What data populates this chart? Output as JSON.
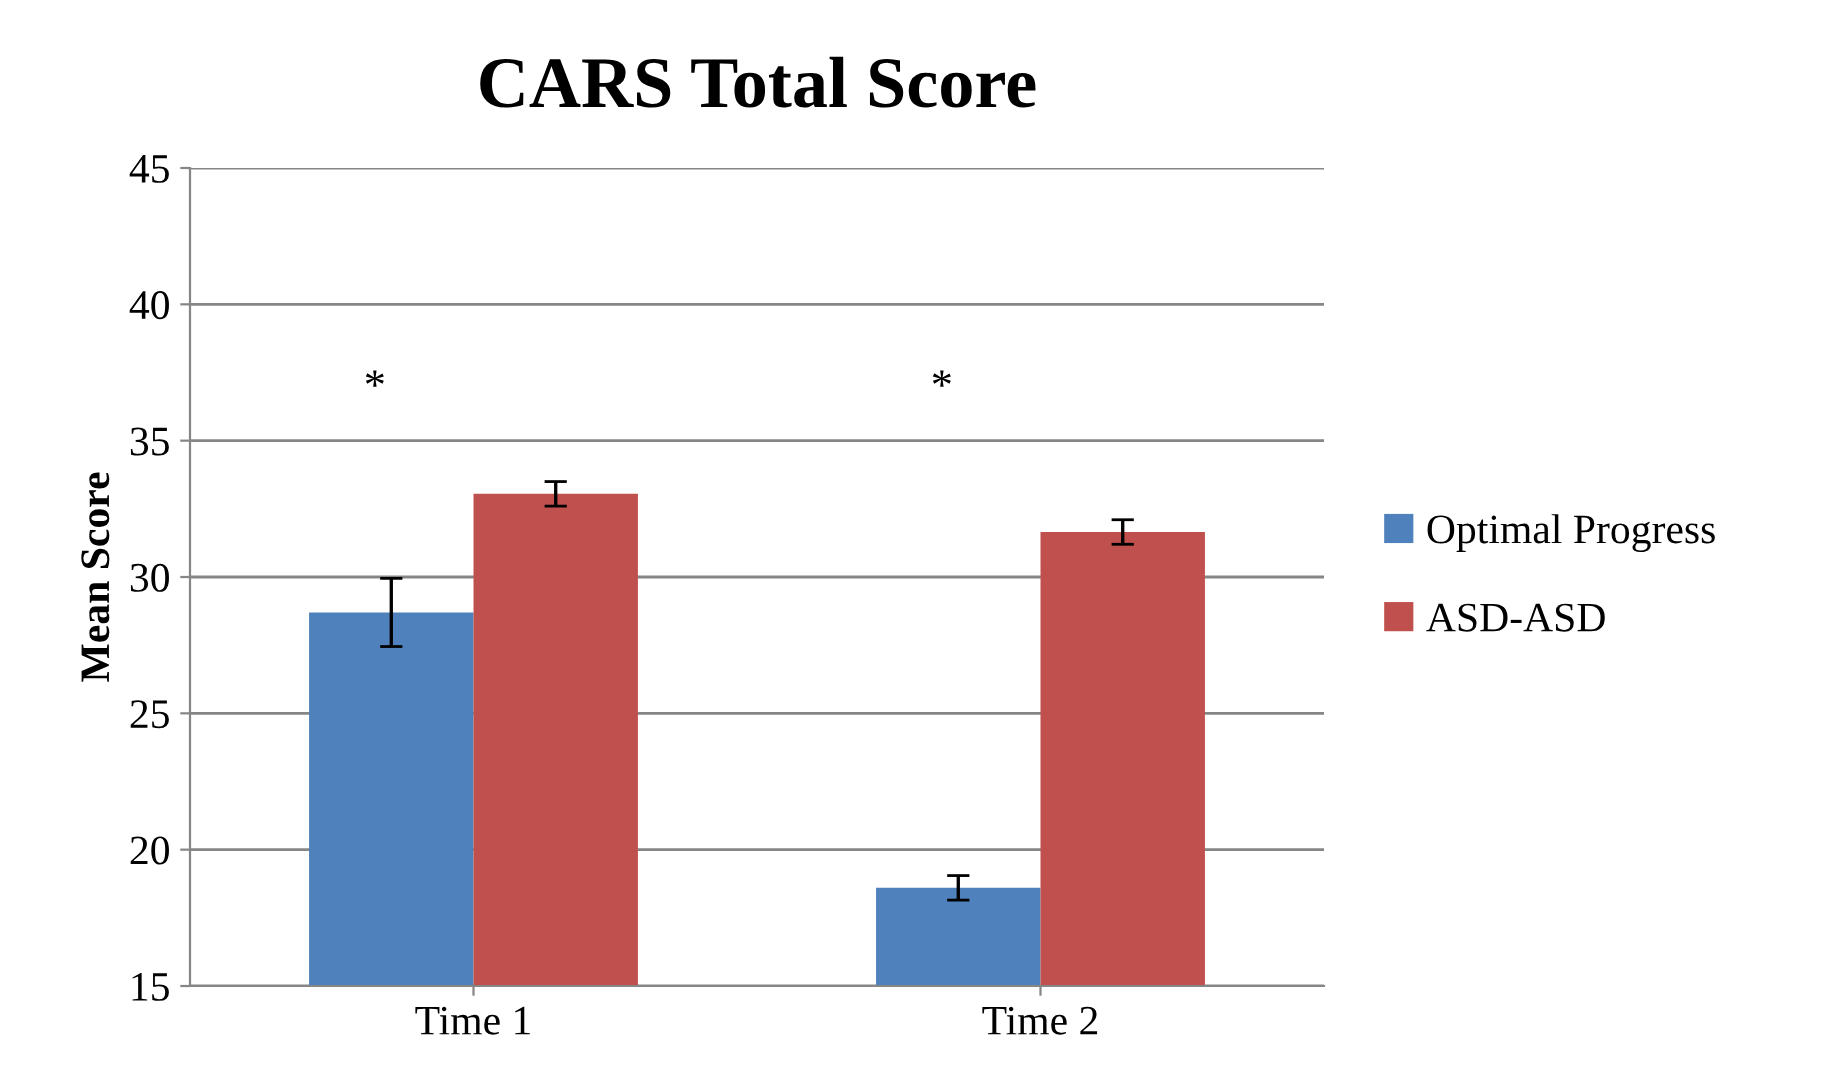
{
  "chart_data": {
    "type": "bar",
    "title": "CARS Total Score",
    "ylabel": "Mean Score",
    "categories": [
      "Time 1",
      "Time 2"
    ],
    "series": [
      {
        "name": "Optimal Progress",
        "color": "#4f81bd",
        "values": [
          28.7,
          18.6
        ],
        "errors": [
          1.25,
          0.45
        ]
      },
      {
        "name": "ASD-ASD",
        "color": "#c0504d",
        "values": [
          33.05,
          31.65
        ],
        "errors": [
          0.45,
          0.45
        ]
      }
    ],
    "ylim": [
      15,
      45
    ],
    "yticks": [
      15,
      20,
      25,
      30,
      35,
      40,
      45
    ],
    "grid": "y",
    "legend": "right",
    "annotations": [
      "*",
      "*"
    ]
  }
}
